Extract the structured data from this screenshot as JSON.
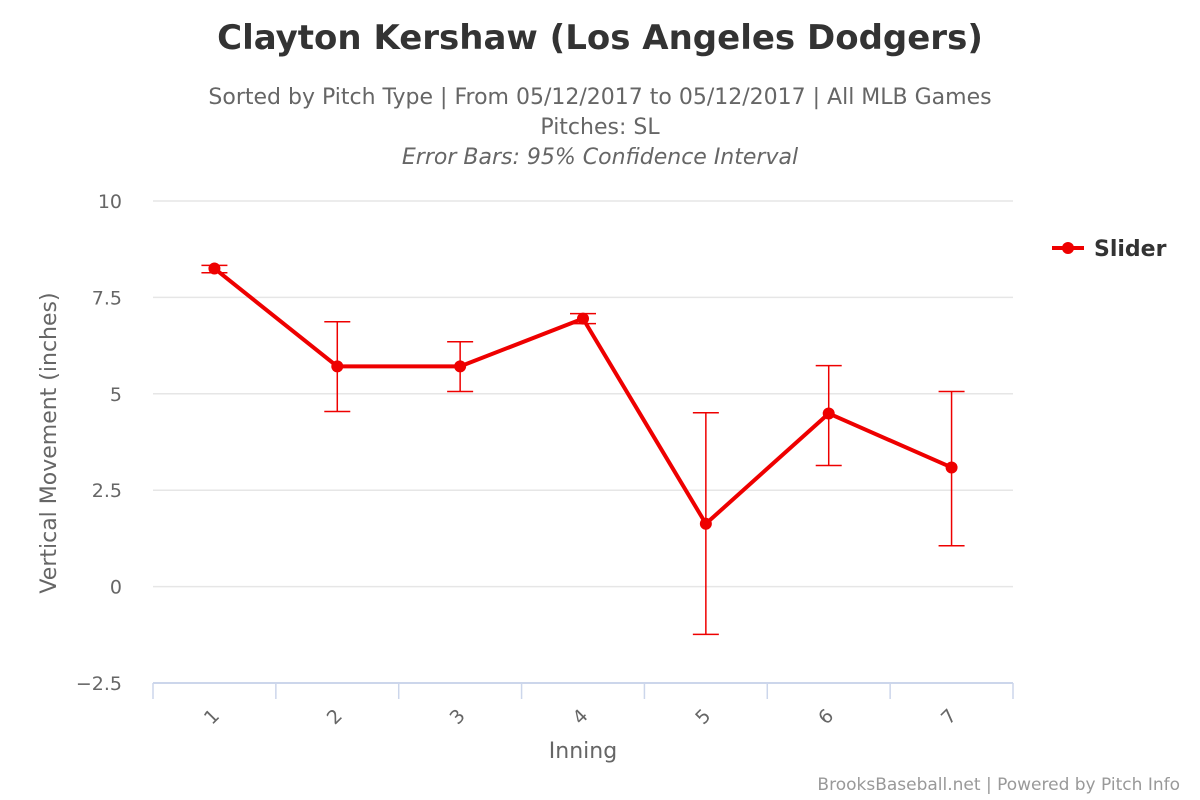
{
  "chart_data": {
    "type": "line",
    "title": "Clayton Kershaw (Los Angeles Dodgers)",
    "subtitle": "Sorted by Pitch Type | From 05/12/2017 to 05/12/2017 | All MLB Games",
    "subtitle2": "Pitches: SL",
    "subtitle3": "Error Bars: 95% Confidence Interval",
    "xlabel": "Inning",
    "ylabel": "Vertical Movement (inches)",
    "categories": [
      "1",
      "2",
      "3",
      "4",
      "5",
      "6",
      "7"
    ],
    "yticks": [
      "10",
      "7.5",
      "5",
      "2.5",
      "0",
      "−2.5"
    ],
    "ytick_values": [
      10,
      7.5,
      5,
      2.5,
      0,
      -2.5
    ],
    "ylim": [
      -2.5,
      10
    ],
    "grid": true,
    "legend_position": "right",
    "series": [
      {
        "name": "Slider",
        "color": "#ee0000",
        "values": [
          8.25,
          5.71,
          5.71,
          6.95,
          1.63,
          4.49,
          3.09
        ],
        "error_low": [
          8.14,
          4.54,
          5.06,
          6.82,
          -1.24,
          3.14,
          1.06
        ],
        "error_high": [
          8.33,
          6.87,
          6.35,
          7.08,
          4.51,
          5.73,
          5.06
        ]
      }
    ],
    "credit": "BrooksBaseball.net | Powered by Pitch Info"
  }
}
